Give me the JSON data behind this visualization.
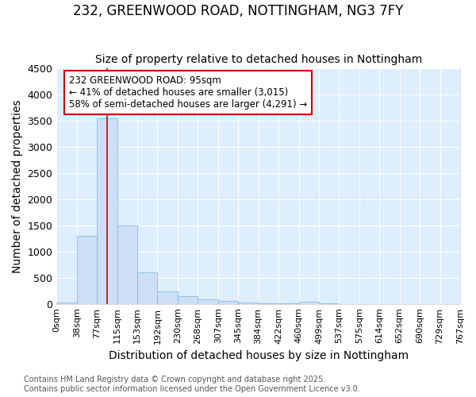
{
  "title": "232, GREENWOOD ROAD, NOTTINGHAM, NG3 7FY",
  "subtitle": "Size of property relative to detached houses in Nottingham",
  "xlabel": "Distribution of detached houses by size in Nottingham",
  "ylabel": "Number of detached properties",
  "bin_labels": [
    "0sqm",
    "38sqm",
    "77sqm",
    "115sqm",
    "153sqm",
    "192sqm",
    "230sqm",
    "268sqm",
    "307sqm",
    "345sqm",
    "384sqm",
    "422sqm",
    "460sqm",
    "499sqm",
    "537sqm",
    "575sqm",
    "614sqm",
    "652sqm",
    "690sqm",
    "729sqm",
    "767sqm"
  ],
  "bar_heights": [
    30,
    1300,
    3540,
    1500,
    600,
    240,
    140,
    80,
    50,
    30,
    15,
    10,
    35,
    4,
    0,
    0,
    0,
    0,
    0,
    0
  ],
  "bar_color": "#ccdff5",
  "bar_edge_color": "#7fb3e0",
  "ylim": [
    0,
    4500
  ],
  "red_line_x": 95,
  "bin_width": 38,
  "annotation_title": "232 GREENWOOD ROAD: 95sqm",
  "annotation_line1": "← 41% of detached houses are smaller (3,015)",
  "annotation_line2": "58% of semi-detached houses are larger (4,291) →",
  "annotation_box_facecolor": "#ffffff",
  "annotation_border_color": "#cc0000",
  "footer_line1": "Contains HM Land Registry data © Crown copyright and database right 2025.",
  "footer_line2": "Contains public sector information licensed under the Open Government Licence v3.0.",
  "fig_facecolor": "#ffffff",
  "ax_facecolor": "#ddeeff",
  "grid_color": "#ffffff",
  "title_fontsize": 12,
  "subtitle_fontsize": 10,
  "axis_label_fontsize": 10,
  "tick_fontsize": 8,
  "footer_fontsize": 7,
  "annotation_fontsize": 8.5
}
